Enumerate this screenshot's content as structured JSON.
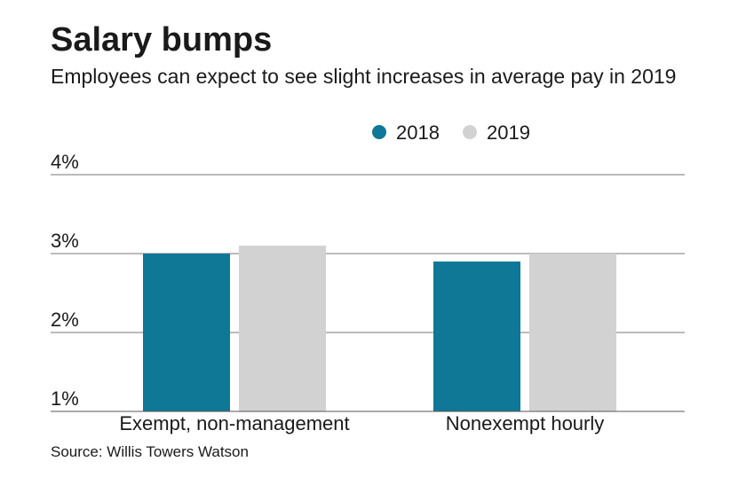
{
  "chart_data": {
    "type": "bar",
    "title": "Salary bumps",
    "subtitle": "Employees can expect to see slight increases in average pay in 2019",
    "categories": [
      "Exempt, non-management",
      "Nonexempt hourly"
    ],
    "series": [
      {
        "name": "2018",
        "color": "#0e7896",
        "values": [
          3.0,
          2.9
        ]
      },
      {
        "name": "2019",
        "color": "#d3d2d3",
        "values": [
          3.1,
          3.0
        ]
      }
    ],
    "ylim": [
      1,
      4
    ],
    "yticks": [
      1,
      2,
      3,
      4
    ],
    "ytick_labels": [
      "1%",
      "2%",
      "3%",
      "4%"
    ],
    "xlabel": "",
    "ylabel": "",
    "grid": true,
    "legend_position": "top-right",
    "source": "Source: Willis Towers Watson"
  }
}
